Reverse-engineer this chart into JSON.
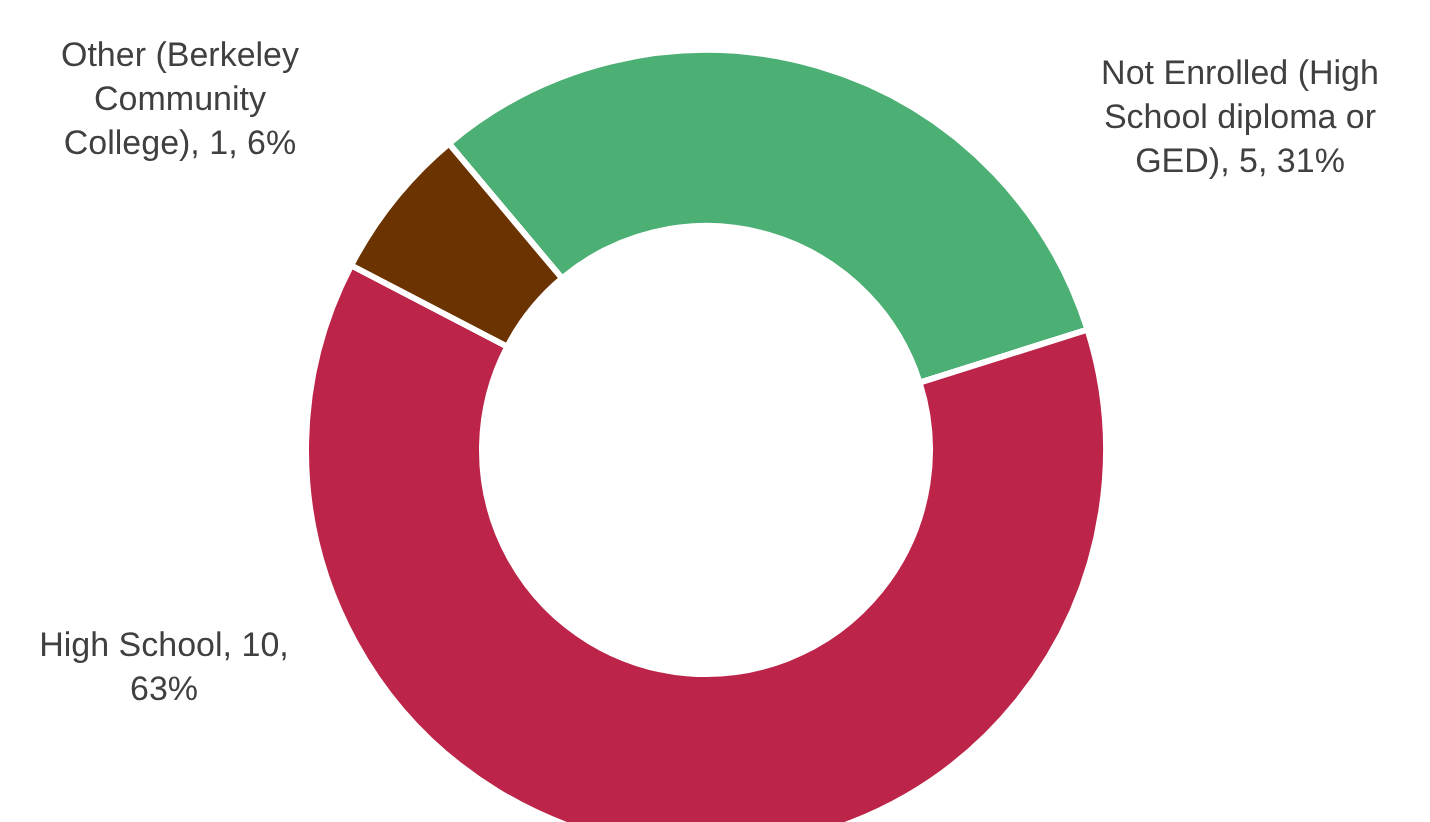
{
  "chart_data": {
    "type": "donut",
    "categories": [
      "Not Enrolled (High School diploma or GED)",
      "High School",
      "Other (Berkeley Community College)"
    ],
    "values": [
      5,
      10,
      1
    ],
    "colors": [
      "#4caf73",
      "#bc2549",
      "#6b3300"
    ],
    "value_labels": [
      "5, 31%",
      "10, 63%",
      "1, 6%"
    ],
    "legend": false
  }
}
